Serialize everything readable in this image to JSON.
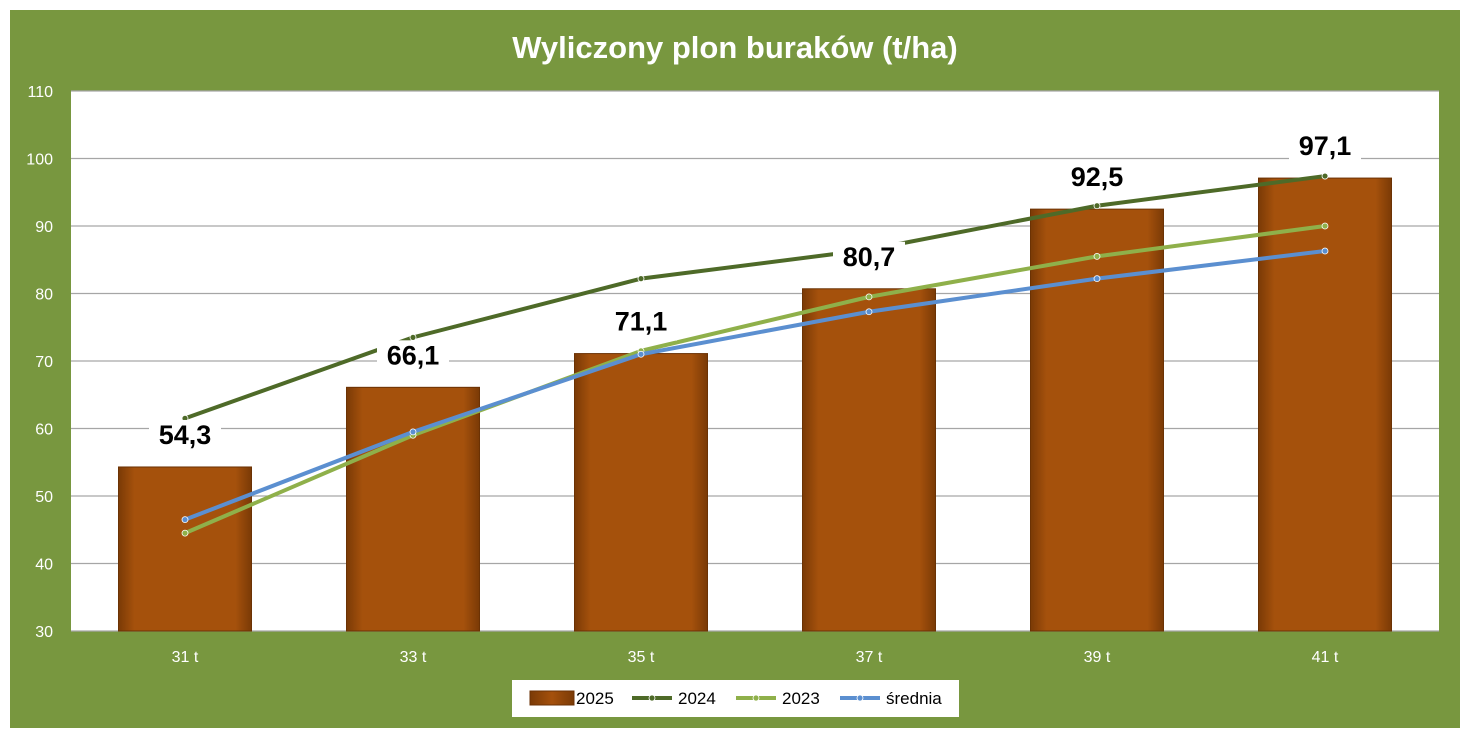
{
  "chart_data": {
    "type": "bar",
    "title": "Wyliczony plon buraków (t/ha)",
    "xlabel": "",
    "ylabel": "",
    "categories": [
      "31 t",
      "33 t",
      "35 t",
      "37 t",
      "39 t",
      "41 t"
    ],
    "ylim": [
      30,
      110
    ],
    "yticks": [
      "30",
      "40",
      "50",
      "60",
      "70",
      "80",
      "90",
      "100",
      "110"
    ],
    "grid": true,
    "legend_position": "bottom",
    "series": [
      {
        "name": "2025",
        "type": "bar",
        "color": "#a5510c",
        "values": [
          54.3,
          66.1,
          71.1,
          80.7,
          92.5,
          97.1
        ],
        "labels": [
          "54,3",
          "66,1",
          "71,1",
          "80,7",
          "92,5",
          "97,1"
        ]
      },
      {
        "name": "2024",
        "type": "line",
        "color": "#4e6a28",
        "values": [
          61.5,
          73.5,
          82.2,
          86.5,
          93.0,
          97.4
        ]
      },
      {
        "name": "2023",
        "type": "line",
        "color": "#8fb04a",
        "values": [
          44.5,
          59.0,
          71.5,
          79.5,
          85.5,
          90.0
        ]
      },
      {
        "name": "średnia",
        "type": "line",
        "color": "#5b8fd0",
        "values": [
          46.5,
          59.5,
          71.0,
          77.3,
          82.2,
          86.3
        ]
      }
    ]
  },
  "colors": {
    "frame": "#78973f",
    "plot_bg": "#ffffff",
    "grid": "#a6a6a6"
  }
}
